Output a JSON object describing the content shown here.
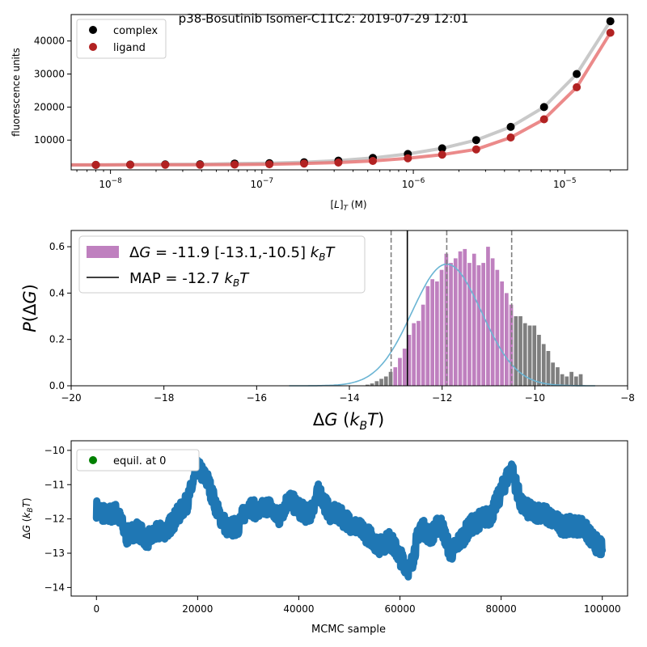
{
  "figure": {
    "suptitle": "p38-Bosutinib Isomer-C11C2: 2019-07-29 12:01"
  },
  "chart_data": [
    {
      "type": "scatter",
      "id": "titration",
      "xlabel": "[L]_T (M)",
      "ylabel": "fluorescence units",
      "xscale": "log",
      "xlim": [
        5.5e-09,
        2.6e-05
      ],
      "ylim": [
        1000,
        48000
      ],
      "xticks": [
        {
          "value": 1e-08,
          "base": "10",
          "exp": "−8"
        },
        {
          "value": 1e-07,
          "base": "10",
          "exp": "−7"
        },
        {
          "value": 1e-06,
          "base": "10",
          "exp": "−6"
        },
        {
          "value": 1e-05,
          "base": "10",
          "exp": "−5"
        }
      ],
      "yticks": [
        10000,
        20000,
        30000,
        40000
      ],
      "legend": {
        "position": "top-left",
        "entries": [
          "complex",
          "ligand"
        ]
      },
      "x": [
        8e-09,
        1.35e-08,
        2.3e-08,
        3.9e-08,
        6.6e-08,
        1.12e-07,
        1.9e-07,
        3.2e-07,
        5.4e-07,
        9.2e-07,
        1.55e-06,
        2.6e-06,
        4.4e-06,
        7.3e-06,
        1.2e-05,
        2e-05
      ],
      "series": [
        {
          "name": "complex",
          "color": "#000000",
          "fit_color": "#bfbfbf",
          "values": [
            2500,
            2600,
            2650,
            2700,
            2900,
            3000,
            3300,
            3800,
            4600,
            5800,
            7500,
            10000,
            14000,
            20000,
            30000,
            46000
          ]
        },
        {
          "name": "ligand",
          "color": "#b22222",
          "fit_color": "#e87575",
          "values": [
            2500,
            2550,
            2550,
            2550,
            2600,
            2700,
            2900,
            3200,
            3700,
            4500,
            5600,
            7200,
            10800,
            16300,
            26000,
            42500
          ]
        }
      ]
    },
    {
      "type": "bar",
      "id": "posterior",
      "xlabel": "ΔG (k_BT)",
      "ylabel": "P(ΔG)",
      "xlim": [
        -20,
        -8
      ],
      "ylim": [
        0,
        0.67
      ],
      "xticks": [
        -20,
        -18,
        -16,
        -14,
        -12,
        -10,
        -8
      ],
      "yticks": [
        0.0,
        0.2,
        0.4,
        0.6
      ],
      "legend": {
        "position": "top-left",
        "entries": [
          {
            "label": "ΔG =  -11.9 [-13.1,-10.5] k_BT",
            "color": "#bf80bf"
          },
          {
            "label": "MAP = -12.7 k_BT",
            "color": "#000000"
          }
        ]
      },
      "histogram": {
        "bin_start": -13.66,
        "bin_width": 0.1,
        "values": [
          0.005,
          0.01,
          0.02,
          0.03,
          0.04,
          0.06,
          0.08,
          0.12,
          0.16,
          0.22,
          0.27,
          0.28,
          0.35,
          0.43,
          0.46,
          0.45,
          0.5,
          0.57,
          0.53,
          0.55,
          0.58,
          0.59,
          0.53,
          0.57,
          0.52,
          0.53,
          0.6,
          0.55,
          0.5,
          0.45,
          0.4,
          0.35,
          0.3,
          0.3,
          0.27,
          0.26,
          0.26,
          0.22,
          0.18,
          0.15,
          0.1,
          0.08,
          0.05,
          0.04,
          0.06,
          0.04,
          0.05
        ],
        "ci_low": -13.1,
        "ci_high": -10.5,
        "in_ci_color": "#bf80bf",
        "out_ci_color": "#7f7f7f"
      },
      "gaussian": {
        "mean": -11.9,
        "sd": 0.75,
        "peak": 0.525,
        "range": [
          -15.3,
          -8.7
        ],
        "color": "#6bb5d4"
      },
      "vlines": [
        {
          "x": -13.1,
          "style": "dashed",
          "color": "#7f7f7f"
        },
        {
          "x": -11.9,
          "style": "dashed",
          "color": "#7f7f7f"
        },
        {
          "x": -10.5,
          "style": "dashed",
          "color": "#7f7f7f"
        },
        {
          "x": -12.75,
          "style": "solid",
          "color": "#000000"
        }
      ]
    },
    {
      "type": "line",
      "id": "trace",
      "xlabel": "MCMC sample",
      "ylabel": "ΔG (k_BT)",
      "xlim": [
        -5000,
        105000
      ],
      "ylim": [
        -14.25,
        -9.72
      ],
      "xticks": [
        0,
        20000,
        40000,
        60000,
        80000,
        100000
      ],
      "yticks": [
        -14,
        -13,
        -12,
        -11,
        -10
      ],
      "legend": {
        "position": "top-left",
        "entries": [
          {
            "label": "equil. at 0",
            "color": "#008000"
          }
        ]
      },
      "color": "#1f77b4",
      "x": [
        0,
        2000,
        4000,
        6000,
        8000,
        10000,
        12000,
        14000,
        16000,
        18000,
        20000,
        22000,
        24000,
        26000,
        28000,
        30000,
        32000,
        34000,
        36000,
        38000,
        40000,
        42000,
        44000,
        46000,
        48000,
        50000,
        52000,
        54000,
        56000,
        58000,
        60000,
        62000,
        64000,
        66000,
        68000,
        70000,
        72000,
        74000,
        76000,
        78000,
        80000,
        82000,
        84000,
        86000,
        88000,
        90000,
        92000,
        94000,
        96000,
        98000,
        100000
      ],
      "values": [
        -11.7,
        -11.9,
        -11.8,
        -12.5,
        -12.3,
        -12.6,
        -12.4,
        -12.3,
        -11.9,
        -11.5,
        -10.5,
        -10.9,
        -11.8,
        -12.3,
        -12.2,
        -11.6,
        -11.8,
        -11.6,
        -12.0,
        -11.4,
        -11.7,
        -11.9,
        -11.2,
        -11.8,
        -11.9,
        -12.1,
        -12.3,
        -12.5,
        -12.8,
        -12.6,
        -13.1,
        -13.5,
        -12.2,
        -12.5,
        -12.1,
        -13.0,
        -12.6,
        -12.2,
        -12.0,
        -11.9,
        -11.2,
        -10.5,
        -11.6,
        -11.8,
        -11.8,
        -12.0,
        -12.2,
        -12.2,
        -12.2,
        -12.6,
        -12.9
      ]
    }
  ]
}
